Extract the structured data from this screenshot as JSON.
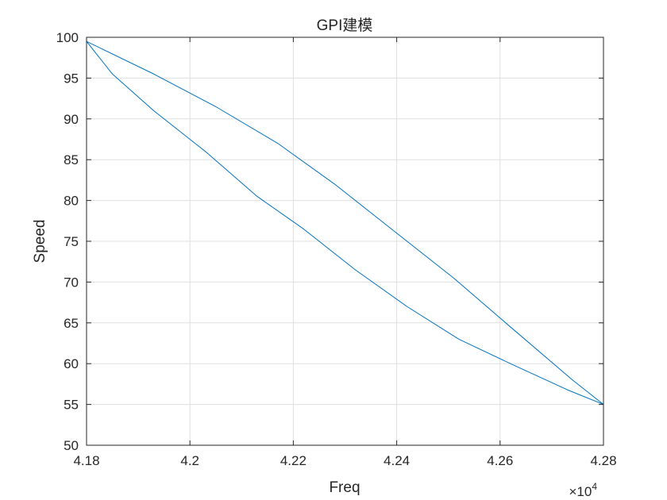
{
  "chart_data": {
    "type": "line",
    "title": "GPI建模",
    "xlabel": "Freq",
    "ylabel": "Speed",
    "x_exponent_base": "×10",
    "x_exponent_power": "4",
    "xlim": [
      4.18,
      4.28
    ],
    "ylim": [
      50,
      100
    ],
    "xticks": [
      "4.18",
      "4.2",
      "4.22",
      "4.24",
      "4.26",
      "4.28"
    ],
    "yticks": [
      "50",
      "55",
      "60",
      "65",
      "70",
      "75",
      "80",
      "85",
      "90",
      "95",
      "100"
    ],
    "grid": true,
    "series": [
      {
        "color": "#0072BD",
        "x": [
          4.18,
          4.193,
          4.205,
          4.217,
          4.228,
          4.24,
          4.251,
          4.262,
          4.274,
          4.28,
          4.273,
          4.262,
          4.252,
          4.242,
          4.232,
          4.222,
          4.213,
          4.203,
          4.193,
          4.185,
          4.18
        ],
        "y": [
          99.5,
          95.5,
          91.5,
          87,
          82,
          76,
          70.5,
          64.5,
          58,
          55,
          56.8,
          60,
          63,
          67,
          71.5,
          76.5,
          80.5,
          86,
          91,
          95.5,
          99.5
        ]
      }
    ]
  }
}
